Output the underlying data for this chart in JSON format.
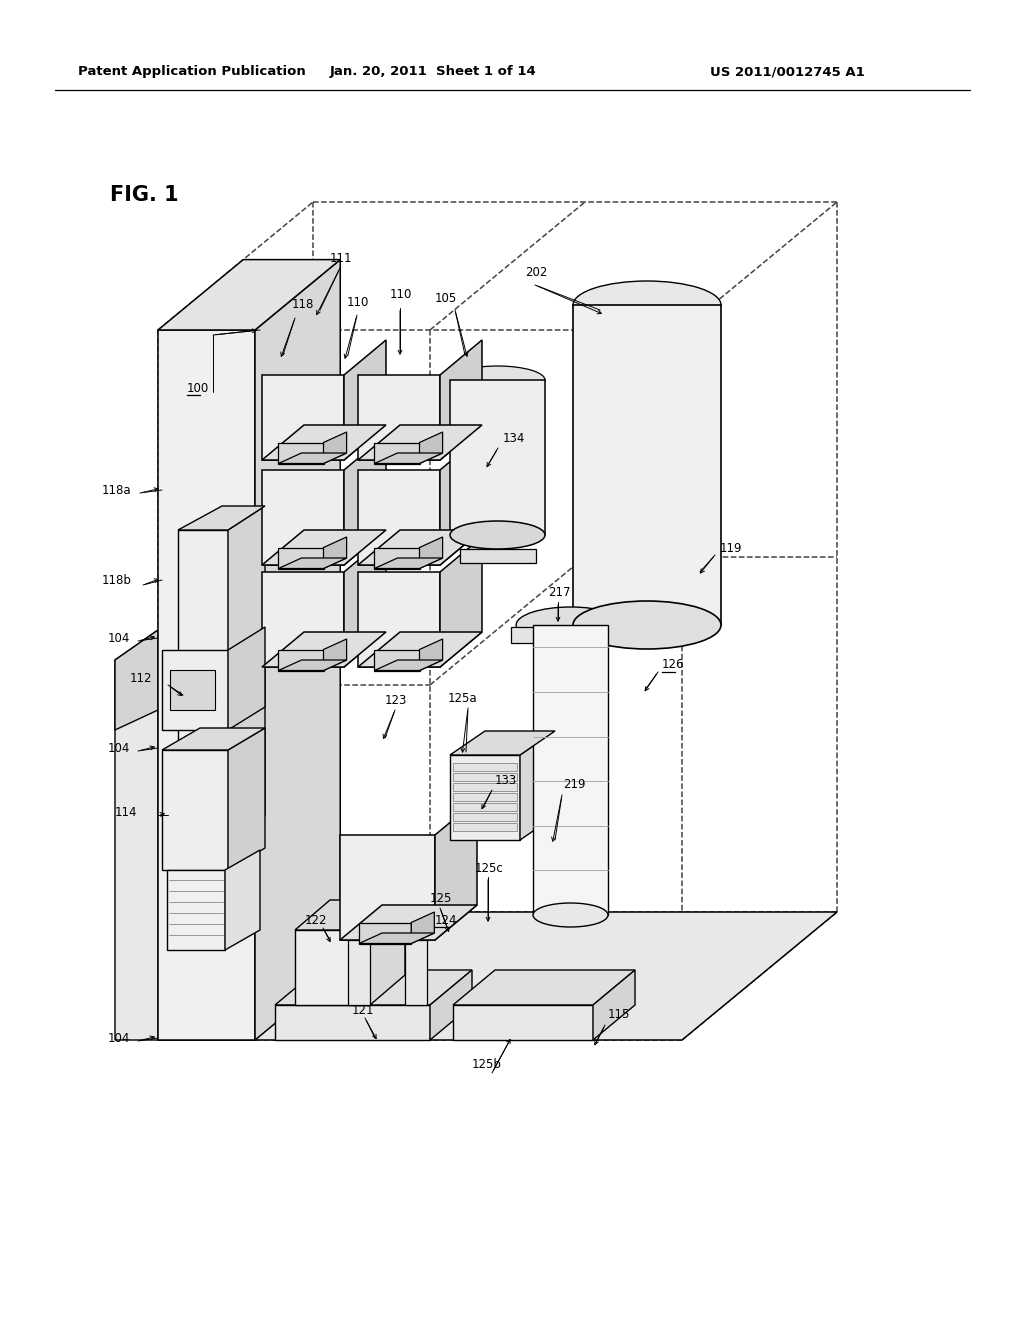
{
  "bg_color": "#ffffff",
  "line_color": "#000000",
  "header_left": "Patent Application Publication",
  "header_mid": "Jan. 20, 2011  Sheet 1 of 14",
  "header_right": "US 2011/0012745 A1",
  "fig_label": "FIG. 1"
}
